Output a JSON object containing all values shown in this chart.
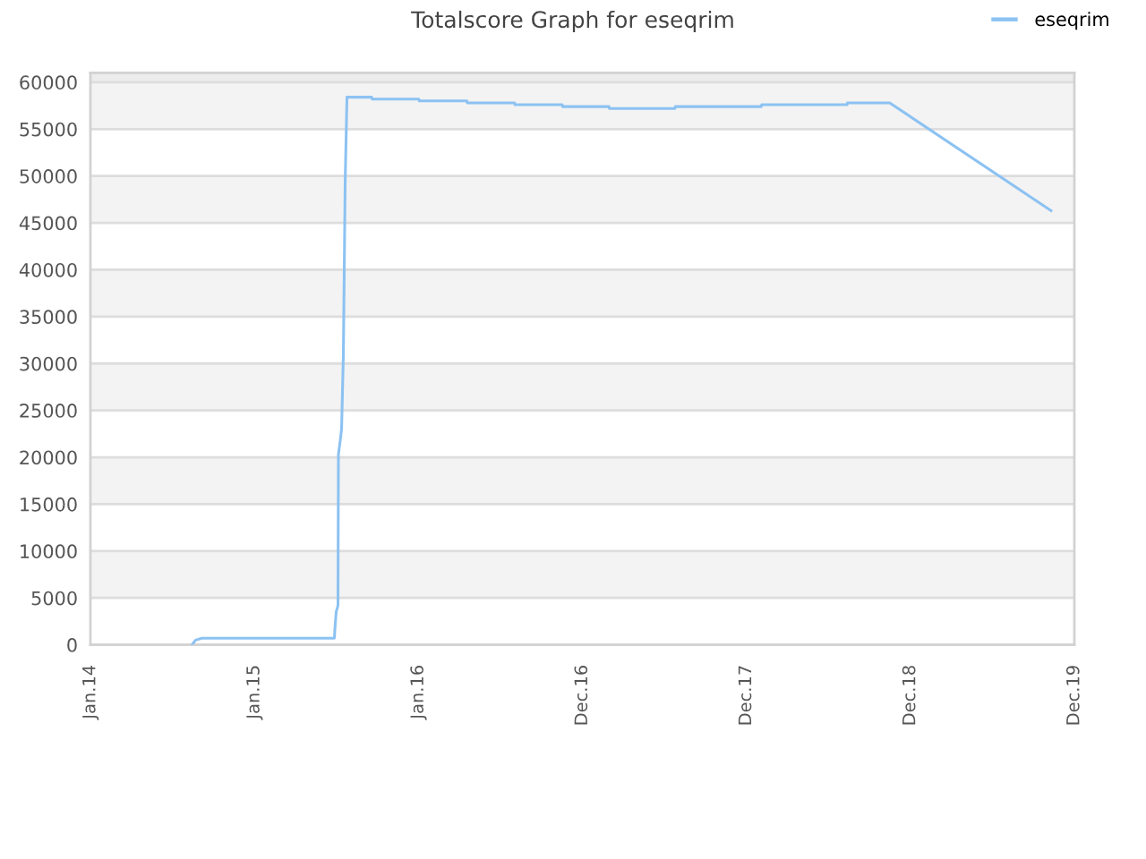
{
  "chart_data": {
    "type": "line",
    "title": "Totalscore Graph for eseqrim",
    "x": [
      "2014-08-15",
      "2014-08-23",
      "2014-09-06",
      "2015-06-28",
      "2015-06-29",
      "2015-07-02",
      "2015-07-06",
      "2015-07-07",
      "2015-07-10",
      "2015-07-14",
      "2015-07-18",
      "2015-07-22",
      "2015-07-26",
      "2015-09-19",
      "2015-09-20",
      "2016-01-02",
      "2016-01-03",
      "2016-04-18",
      "2016-04-19",
      "2016-08-02",
      "2016-08-03",
      "2016-11-16",
      "2016-11-17",
      "2017-02-28",
      "2017-03-01",
      "2017-07-25",
      "2017-07-26",
      "2018-02-02",
      "2018-02-03",
      "2018-08-12",
      "2018-08-13",
      "2018-11-15",
      "2019-11-09"
    ],
    "series": [
      {
        "name": "eseqrim",
        "color": "#8cc2f2",
        "values": [
          0,
          500,
          700,
          700,
          1600,
          3500,
          4200,
          20300,
          21400,
          23000,
          31000,
          49400,
          58400,
          58400,
          58200,
          58200,
          58000,
          58000,
          57800,
          57800,
          57600,
          57600,
          57400,
          57400,
          57200,
          57200,
          57400,
          57400,
          57600,
          57600,
          57800,
          57800,
          46300
        ]
      }
    ],
    "xlim": [
      "2014-01-01",
      "2019-12-31"
    ],
    "xticks": [
      {
        "value": "2014-01-01",
        "label": "Jan.14"
      },
      {
        "value": "2015-01-01",
        "label": "Jan.15"
      },
      {
        "value": "2016-01-01",
        "label": "Jan.16"
      },
      {
        "value": "2016-12-31",
        "label": "Dec.16"
      },
      {
        "value": "2017-12-31",
        "label": "Dec.17"
      },
      {
        "value": "2018-12-31",
        "label": "Dec.18"
      },
      {
        "value": "2019-12-31",
        "label": "Dec.19"
      }
    ],
    "ylim": [
      0,
      61000
    ],
    "yticks": [
      0,
      5000,
      10000,
      15000,
      20000,
      25000,
      30000,
      35000,
      40000,
      45000,
      50000,
      55000,
      60000
    ],
    "bands": [
      {
        "axis": "y",
        "from": 5000,
        "to": 10000,
        "color": "#f3f3f3"
      },
      {
        "axis": "y",
        "from": 15000,
        "to": 20000,
        "color": "#f3f3f3"
      },
      {
        "axis": "y",
        "from": 25000,
        "to": 30000,
        "color": "#f3f3f3"
      },
      {
        "axis": "y",
        "from": 35000,
        "to": 40000,
        "color": "#f3f3f3"
      },
      {
        "axis": "y",
        "from": 45000,
        "to": 50000,
        "color": "#f3f3f3"
      },
      {
        "axis": "y",
        "from": 55000,
        "to": 60000,
        "color": "#f3f3f3"
      },
      {
        "axis": "y",
        "from": 60000,
        "to": 61000,
        "color": "#ececec"
      }
    ],
    "grid": "y",
    "legend": "top right"
  }
}
